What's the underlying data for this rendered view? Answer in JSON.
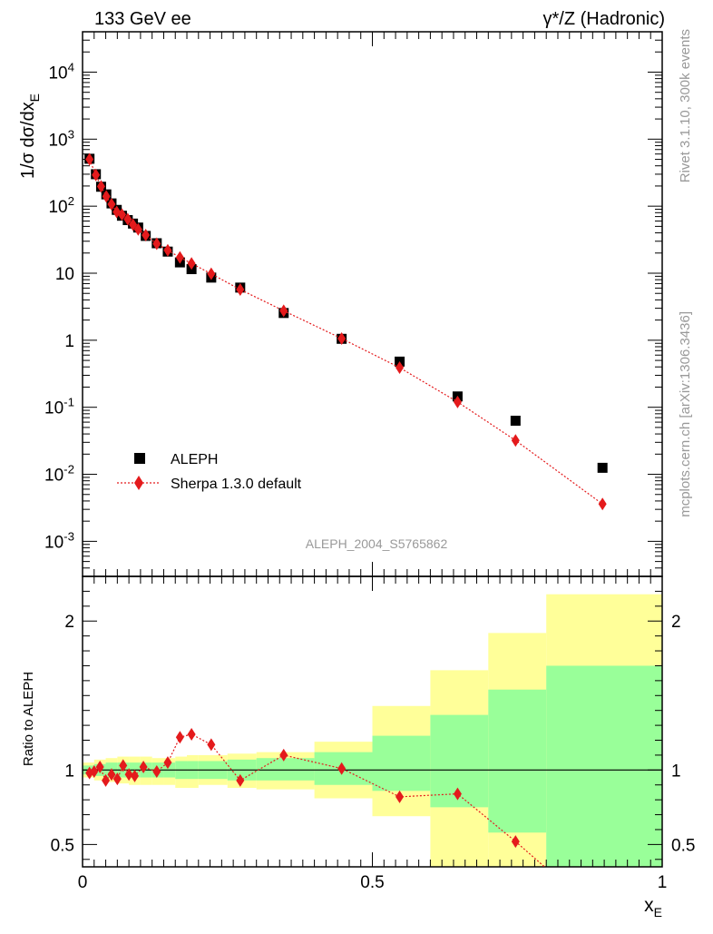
{
  "header": {
    "left_title": "133 GeV ee",
    "right_title": "γ*/Z (Hadronic)"
  },
  "side_texts": {
    "rivet": "Rivet 3.1.10,  300k events",
    "mcplots": "mcplots.cern.ch [arXiv:1306.3436]"
  },
  "analysis_label": "ALEPH_2004_S5765862",
  "colors": {
    "data": "#000000",
    "mc": "#e41a1c",
    "band_inner": "#99ff99",
    "band_outer": "#ffff99"
  },
  "chart_data": [
    {
      "type": "scatter",
      "ylabel": "1/σ dσ/dx_E",
      "yscale": "log",
      "xlim": [
        0,
        1
      ],
      "ylim": [
        0.0003,
        40000
      ],
      "y_ticks": [
        {
          "value": 0.001,
          "label": "10^-3"
        },
        {
          "value": 0.01,
          "label": "10^-2"
        },
        {
          "value": 0.1,
          "label": "10^-1"
        },
        {
          "value": 1,
          "label": "1"
        },
        {
          "value": 10,
          "label": "10"
        },
        {
          "value": 100,
          "label": "10^2"
        },
        {
          "value": 1000,
          "label": "10^3"
        },
        {
          "value": 10000,
          "label": "10^4"
        }
      ],
      "legend": {
        "position": "bottom-left",
        "entries": [
          "ALEPH",
          "Sherpa 1.3.0 default"
        ]
      },
      "series": [
        {
          "name": "ALEPH",
          "marker": "square",
          "points": [
            [
              0.012,
              510
            ],
            [
              0.023,
              300
            ],
            [
              0.032,
              195
            ],
            [
              0.041,
              150
            ],
            [
              0.05,
              110
            ],
            [
              0.059,
              88
            ],
            [
              0.068,
              72
            ],
            [
              0.078,
              62
            ],
            [
              0.087,
              55
            ],
            [
              0.096,
              48
            ],
            [
              0.109,
              36
            ],
            [
              0.128,
              28
            ],
            [
              0.147,
              21
            ],
            [
              0.168,
              14.5
            ],
            [
              0.188,
              11.5
            ],
            [
              0.222,
              8.6
            ],
            [
              0.272,
              6.1
            ],
            [
              0.347,
              2.55
            ],
            [
              0.447,
              1.05
            ],
            [
              0.547,
              0.48
            ],
            [
              0.647,
              0.145
            ],
            [
              0.747,
              0.063
            ],
            [
              0.897,
              0.0125
            ]
          ]
        },
        {
          "name": "Sherpa 1.3.0 default",
          "marker": "diamond",
          "points": [
            [
              0.012,
              500
            ],
            [
              0.023,
              292
            ],
            [
              0.032,
              197
            ],
            [
              0.041,
              140
            ],
            [
              0.05,
              107
            ],
            [
              0.059,
              82
            ],
            [
              0.068,
              75
            ],
            [
              0.078,
              64
            ],
            [
              0.087,
              53
            ],
            [
              0.096,
              45
            ],
            [
              0.109,
              37
            ],
            [
              0.128,
              27.5
            ],
            [
              0.147,
              22
            ],
            [
              0.168,
              17.2
            ],
            [
              0.188,
              14
            ],
            [
              0.222,
              9.8
            ],
            [
              0.272,
              5.7
            ],
            [
              0.347,
              2.75
            ],
            [
              0.447,
              1.06
            ],
            [
              0.547,
              0.39
            ],
            [
              0.647,
              0.12
            ],
            [
              0.747,
              0.032
            ],
            [
              0.897,
              0.0036
            ]
          ]
        }
      ]
    },
    {
      "type": "line",
      "xlabel": "x_E",
      "ylabel": "Ratio to ALEPH",
      "xlim": [
        0,
        1
      ],
      "ylim": [
        0.35,
        2.3
      ],
      "x_ticks": [
        {
          "value": 0,
          "label": "0"
        },
        {
          "value": 0.5,
          "label": "0.5"
        },
        {
          "value": 1,
          "label": "1"
        }
      ],
      "y_ticks": [
        {
          "value": 0.5,
          "label": "0.5"
        },
        {
          "value": 1,
          "label": "1"
        },
        {
          "value": 2,
          "label": "2"
        }
      ],
      "reference_line": 1,
      "error_bands": [
        {
          "x0": 0.0,
          "x1": 0.02,
          "inner": [
            0.97,
            1.03
          ],
          "outer": [
            0.95,
            1.05
          ]
        },
        {
          "x0": 0.02,
          "x1": 0.04,
          "inner": [
            0.96,
            1.04
          ],
          "outer": [
            0.93,
            1.07
          ]
        },
        {
          "x0": 0.04,
          "x1": 0.06,
          "inner": [
            0.95,
            1.05
          ],
          "outer": [
            0.92,
            1.08
          ]
        },
        {
          "x0": 0.06,
          "x1": 0.08,
          "inner": [
            0.95,
            1.05
          ],
          "outer": [
            0.91,
            1.09
          ]
        },
        {
          "x0": 0.08,
          "x1": 0.1,
          "inner": [
            0.95,
            1.05
          ],
          "outer": [
            0.9,
            1.09
          ]
        },
        {
          "x0": 0.1,
          "x1": 0.12,
          "inner": [
            0.95,
            1.05
          ],
          "outer": [
            0.9,
            1.09
          ]
        },
        {
          "x0": 0.12,
          "x1": 0.14,
          "inner": [
            0.95,
            1.05
          ],
          "outer": [
            0.9,
            1.08
          ]
        },
        {
          "x0": 0.14,
          "x1": 0.16,
          "inner": [
            0.95,
            1.05
          ],
          "outer": [
            0.9,
            1.08
          ]
        },
        {
          "x0": 0.16,
          "x1": 0.18,
          "inner": [
            0.94,
            1.06
          ],
          "outer": [
            0.88,
            1.09
          ]
        },
        {
          "x0": 0.18,
          "x1": 0.2,
          "inner": [
            0.94,
            1.06
          ],
          "outer": [
            0.88,
            1.1
          ]
        },
        {
          "x0": 0.2,
          "x1": 0.25,
          "inner": [
            0.94,
            1.06
          ],
          "outer": [
            0.9,
            1.1
          ]
        },
        {
          "x0": 0.25,
          "x1": 0.3,
          "inner": [
            0.93,
            1.07
          ],
          "outer": [
            0.88,
            1.11
          ]
        },
        {
          "x0": 0.3,
          "x1": 0.4,
          "inner": [
            0.93,
            1.08
          ],
          "outer": [
            0.87,
            1.12
          ]
        },
        {
          "x0": 0.4,
          "x1": 0.5,
          "inner": [
            0.9,
            1.12
          ],
          "outer": [
            0.81,
            1.19
          ]
        },
        {
          "x0": 0.5,
          "x1": 0.6,
          "inner": [
            0.86,
            1.23
          ],
          "outer": [
            0.69,
            1.43
          ]
        },
        {
          "x0": 0.6,
          "x1": 0.7,
          "inner": [
            0.75,
            1.37
          ],
          "outer": [
            0.35,
            1.67
          ]
        },
        {
          "x0": 0.7,
          "x1": 0.8,
          "inner": [
            0.58,
            1.54
          ],
          "outer": [
            0.35,
            1.92
          ]
        },
        {
          "x0": 0.8,
          "x1": 1.0,
          "inner": [
            0.35,
            1.7
          ],
          "outer": [
            0.35,
            2.18
          ]
        }
      ],
      "series": [
        {
          "name": "Sherpa 1.3.0 default",
          "marker": "diamond",
          "points": [
            [
              0.012,
              0.98
            ],
            [
              0.02,
              0.99
            ],
            [
              0.03,
              1.02
            ],
            [
              0.04,
              0.93
            ],
            [
              0.05,
              0.97
            ],
            [
              0.06,
              0.94
            ],
            [
              0.07,
              1.03
            ],
            [
              0.08,
              0.97
            ],
            [
              0.09,
              0.96
            ],
            [
              0.105,
              1.02
            ],
            [
              0.128,
              0.99
            ],
            [
              0.147,
              1.05
            ],
            [
              0.168,
              1.22
            ],
            [
              0.188,
              1.24
            ],
            [
              0.222,
              1.17
            ],
            [
              0.272,
              0.93
            ],
            [
              0.347,
              1.1
            ],
            [
              0.447,
              1.01
            ],
            [
              0.547,
              0.82
            ],
            [
              0.647,
              0.84
            ],
            [
              0.747,
              0.52
            ],
            [
              0.797,
              0.35
            ]
          ]
        }
      ]
    }
  ]
}
